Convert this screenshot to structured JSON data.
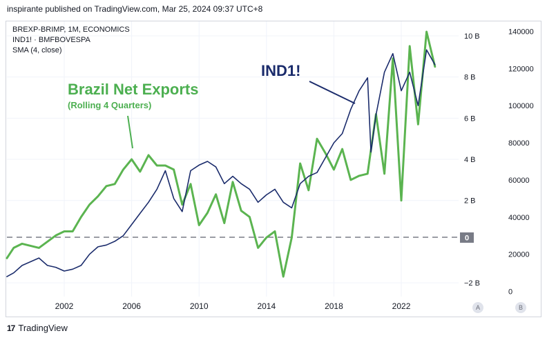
{
  "header": {
    "author": "inspirante",
    "published_text": "published on TradingView.com, Mar 25, 2024 09:37 UTC+8"
  },
  "legend": [
    "BREXP-BRIMP, 1M, ECONOMICS",
    "IND1! · BMFBOVESPA",
    "SMA (4, close)"
  ],
  "annotations": {
    "exports_title": "Brazil Net Exports",
    "exports_subtitle": "(Rolling 4 Quarters)",
    "ind_label": "IND1!"
  },
  "scale_buttons": {
    "a": "A",
    "b": "B"
  },
  "footer": {
    "logo": "17",
    "brand": "TradingView"
  },
  "colors": {
    "exports": "#5bb450",
    "ind": "#1a2b6b",
    "annotation_green": "#4caf50",
    "zero_badge": "#787b86"
  },
  "chart_data": {
    "type": "line",
    "x_ticks": [
      "2002",
      "2006",
      "2010",
      "2014",
      "2018",
      "2022"
    ],
    "x_tick_values": [
      2002,
      2006,
      2010,
      2014,
      2018,
      2022
    ],
    "xlim": [
      1998.6,
      2025.4
    ],
    "y_left": {
      "ticks": [
        "10 B",
        "8 B",
        "6 B",
        "4 B",
        "2 B",
        "−2 B"
      ],
      "tick_values": [
        10,
        8,
        6,
        4,
        2,
        -2
      ],
      "unit": "B",
      "zero_badge": "0",
      "ylim": [
        -2.6,
        10.4
      ]
    },
    "y_right": {
      "ticks": [
        "140000",
        "120000",
        "100000",
        "80000",
        "60000",
        "40000",
        "20000",
        "0"
      ],
      "tick_values": [
        140000,
        120000,
        100000,
        80000,
        60000,
        40000,
        20000,
        0
      ],
      "ylim": [
        -2000,
        142000
      ]
    },
    "zero_line": {
      "value": 0,
      "style": "dashed"
    },
    "series": [
      {
        "name": "Brazil Net Exports",
        "axis": "left",
        "x": [
          1998.6,
          1999.0,
          1999.5,
          2000.0,
          2000.5,
          2001.0,
          2001.5,
          2002.0,
          2002.5,
          2003.0,
          2003.5,
          2004.0,
          2004.5,
          2005.0,
          2005.5,
          2006.0,
          2006.5,
          2007.0,
          2007.5,
          2008.0,
          2008.5,
          2009.0,
          2009.5,
          2010.0,
          2010.5,
          2011.0,
          2011.5,
          2012.0,
          2012.5,
          2013.0,
          2013.5,
          2014.0,
          2014.5,
          2015.0,
          2015.5,
          2016.0,
          2016.5,
          2017.0,
          2017.5,
          2018.0,
          2018.5,
          2019.0,
          2019.5,
          2020.0,
          2020.5,
          2021.0,
          2021.5,
          2022.0,
          2022.5,
          2023.0,
          2023.5,
          2024.0
        ],
        "values": [
          -0.8,
          -0.3,
          -0.1,
          -0.2,
          -0.3,
          0.0,
          0.3,
          0.5,
          0.5,
          1.2,
          1.8,
          2.2,
          2.7,
          2.8,
          3.5,
          4.0,
          3.4,
          4.2,
          3.7,
          3.7,
          3.5,
          1.8,
          2.8,
          0.8,
          1.4,
          2.3,
          0.9,
          2.9,
          1.5,
          1.2,
          -0.3,
          0.2,
          0.5,
          -1.7,
          0.2,
          3.8,
          2.5,
          5.0,
          4.3,
          3.5,
          4.5,
          3.0,
          3.2,
          3.3,
          6.2,
          3.3,
          8.9,
          2.0,
          9.5,
          5.7,
          10.2,
          8.5
        ]
      },
      {
        "name": "IND1!",
        "axis": "right",
        "x": [
          1998.6,
          1999.0,
          1999.5,
          2000.0,
          2000.5,
          2001.0,
          2001.5,
          2002.0,
          2002.5,
          2003.0,
          2003.5,
          2004.0,
          2004.5,
          2005.0,
          2005.5,
          2006.0,
          2006.5,
          2007.0,
          2007.5,
          2008.0,
          2008.5,
          2009.0,
          2009.5,
          2010.0,
          2010.5,
          2011.0,
          2011.5,
          2012.0,
          2012.5,
          2013.0,
          2013.5,
          2014.0,
          2014.5,
          2015.0,
          2015.5,
          2016.0,
          2016.5,
          2017.0,
          2017.5,
          2018.0,
          2018.5,
          2019.0,
          2019.5,
          2020.0,
          2020.2,
          2020.5,
          2021.0,
          2021.5,
          2022.0,
          2022.5,
          2023.0,
          2023.5,
          2024.0
        ],
        "values": [
          8000,
          10000,
          14000,
          16000,
          18000,
          14000,
          13000,
          11000,
          12000,
          14000,
          20000,
          24000,
          25000,
          27000,
          30000,
          36000,
          42000,
          48000,
          55000,
          65000,
          50000,
          43000,
          65000,
          68000,
          70000,
          67000,
          58000,
          62000,
          58000,
          55000,
          48000,
          52000,
          55000,
          48000,
          45000,
          58000,
          62000,
          64000,
          72000,
          80000,
          85000,
          98000,
          108000,
          115000,
          75000,
          95000,
          118000,
          128000,
          108000,
          118000,
          100000,
          130000,
          122000
        ]
      }
    ]
  }
}
